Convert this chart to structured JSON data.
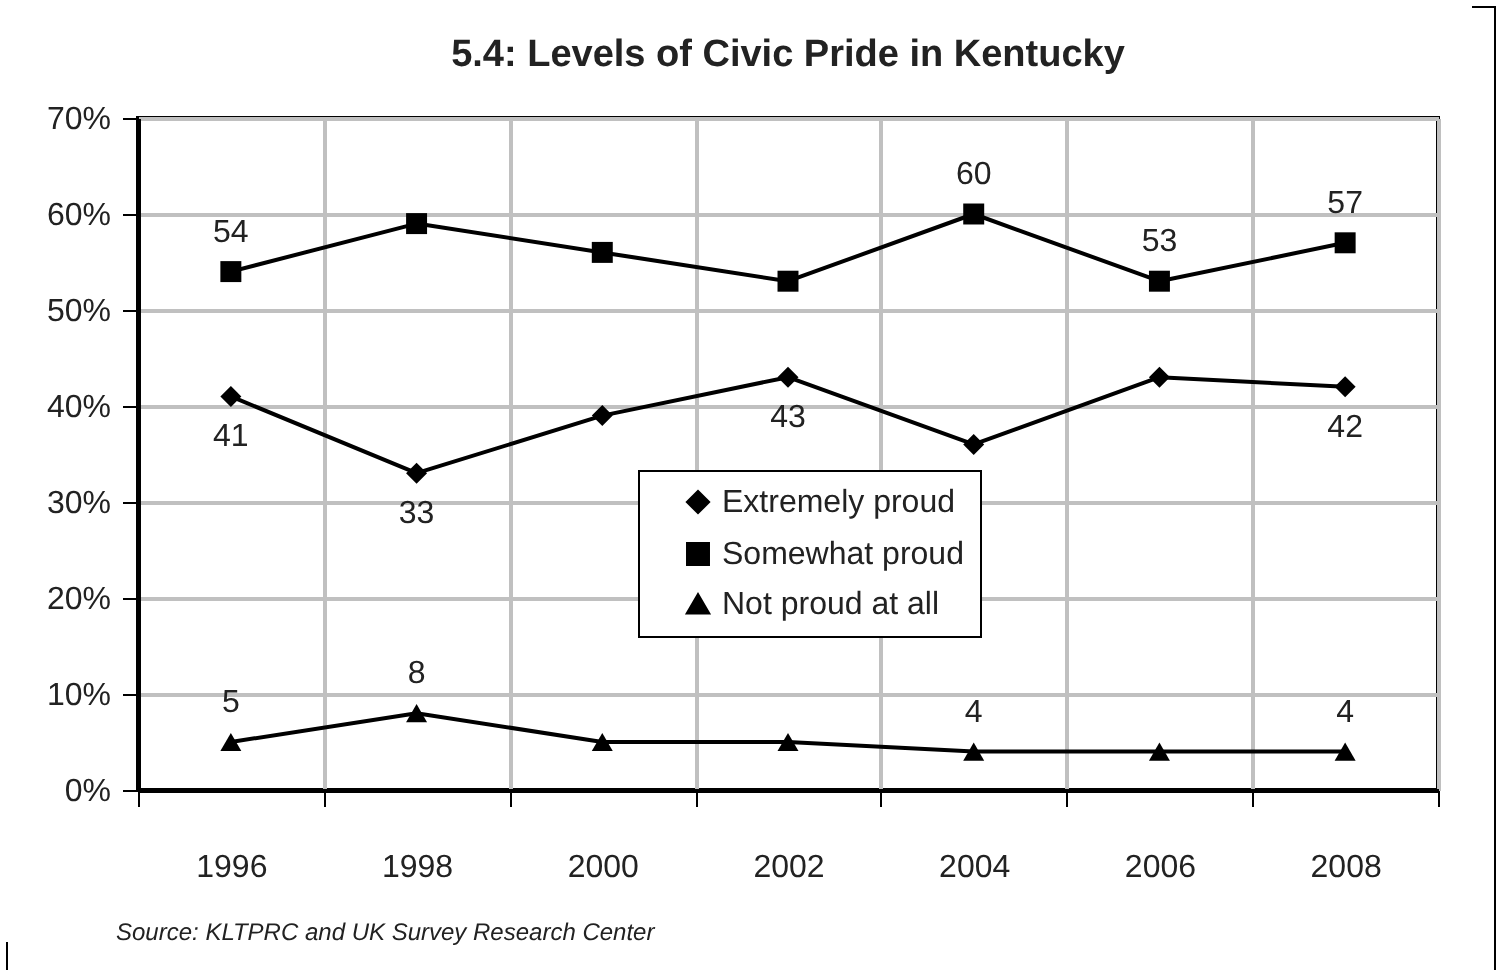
{
  "chart_data": {
    "type": "line",
    "title": "5.4:  Levels of Civic Pride in Kentucky",
    "categories": [
      "1996",
      "1998",
      "2000",
      "2002",
      "2004",
      "2006",
      "2008"
    ],
    "series": [
      {
        "name": "Extremely proud",
        "color": "#000000",
        "marker": "diamond",
        "values": [
          41,
          33,
          39,
          43,
          36,
          43,
          42
        ],
        "value_labels": [
          "41",
          "33",
          null,
          "43",
          null,
          null,
          "42"
        ]
      },
      {
        "name": "Somewhat proud",
        "color": "#000000",
        "marker": "square",
        "values": [
          54,
          59,
          56,
          53,
          60,
          53,
          57
        ],
        "value_labels": [
          "54",
          null,
          null,
          null,
          "60",
          "53",
          "57"
        ]
      },
      {
        "name": "Not proud at all",
        "color": "#000000",
        "marker": "triangle",
        "values": [
          5,
          8,
          5,
          5,
          4,
          4,
          4
        ],
        "value_labels": [
          "5",
          "8",
          null,
          null,
          "4",
          null,
          "4"
        ]
      }
    ],
    "ylim": [
      0,
      70
    ],
    "yticks": [
      {
        "value": 0,
        "label": "0%"
      },
      {
        "value": 10,
        "label": "10%"
      },
      {
        "value": 20,
        "label": "20%"
      },
      {
        "value": 30,
        "label": "30%"
      },
      {
        "value": 40,
        "label": "40%"
      },
      {
        "value": 50,
        "label": "50%"
      },
      {
        "value": 60,
        "label": "60%"
      },
      {
        "value": 70,
        "label": "70%"
      }
    ],
    "grid": true,
    "legend": "center",
    "line_style": "solid",
    "annotations": [
      "Source: KLTPRC and UK Survey Research Center"
    ]
  }
}
